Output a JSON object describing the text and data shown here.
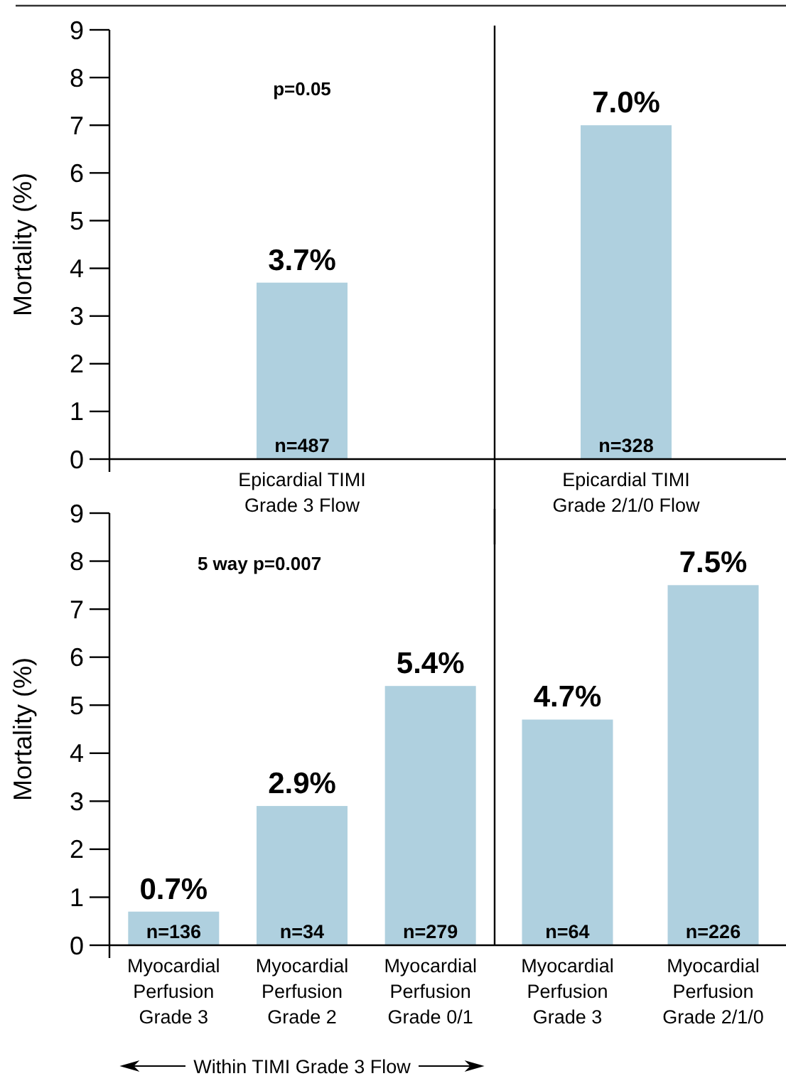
{
  "chart_data": [
    {
      "type": "bar",
      "ylabel": "Mortality (%)",
      "categories": [
        "Epicardial TIMI\nGrade 3 Flow"
      ],
      "values": [
        3.7
      ],
      "value_labels": [
        "3.7%"
      ],
      "color": "#afd0df",
      "ylim": [
        0,
        9
      ],
      "yticks": [
        0,
        1,
        2,
        3,
        4,
        5,
        6,
        7,
        8,
        9
      ],
      "annotations": [
        "p=0.05",
        {
          "text": "n=487",
          "x": "Epicardial TIMI\nGrade 3 Flow",
          "y": 0
        }
      ]
    },
    {
      "type": "bar",
      "categories": [
        "Epicardial TIMI\nGrade 2/1/0 Flow"
      ],
      "values": [
        7.0
      ],
      "value_labels": [
        "7.0%"
      ],
      "color": "#afd0df",
      "ylim": [
        0,
        9
      ],
      "tick_labels": "x",
      "annotations": [
        {
          "text": "n=328",
          "x": "Epicardial TIMI\nGrade 2/1/0 Flow",
          "y": 0
        }
      ]
    },
    {
      "type": "bar",
      "ylabel": "Mortality (%)",
      "categories": [
        "Myocardial\nPerfusion\nGrade 3",
        "Myocardial\nPerfusion\nGrade 2",
        "Myocardial\nPerfusion\nGrade 0/1"
      ],
      "values": [
        0.7,
        2.9,
        5.4
      ],
      "value_labels": [
        "0.7%",
        "2.9%",
        "5.4%"
      ],
      "color": "#afd0df",
      "ylim": [
        0,
        9
      ],
      "yticks": [
        0,
        1,
        2,
        3,
        4,
        5,
        6,
        7,
        8,
        9
      ],
      "annotations": [
        "5 way p=0.007",
        "Within TIMI Grade 3 Flow",
        {
          "text": "n=136",
          "x": "Myocardial\nPerfusion\nGrade 3",
          "y": 0
        },
        {
          "text": "n=34",
          "x": "Myocardial\nPerfusion\nGrade 2",
          "y": 0
        },
        {
          "text": "n=279",
          "x": "Myocardial\nPerfusion\nGrade 0/1",
          "y": 0
        }
      ]
    },
    {
      "type": "bar",
      "categories": [
        "Myocardial\nPerfusion\nGrade 3",
        "Myocardial\nPerfusion\nGrade 2/1/0"
      ],
      "values": [
        4.7,
        7.5
      ],
      "value_labels": [
        "4.7%",
        "7.5%"
      ],
      "color": "#afd0df",
      "ylim": [
        0,
        9
      ],
      "tick_labels": "x",
      "annotations": [
        {
          "text": "n=64",
          "x": "Myocardial\nPerfusion\nGrade 3",
          "y": 0
        },
        {
          "text": "n=226",
          "x": "Myocardial\nPerfusion\nGrade 2/1/0",
          "y": 0
        }
      ]
    }
  ]
}
